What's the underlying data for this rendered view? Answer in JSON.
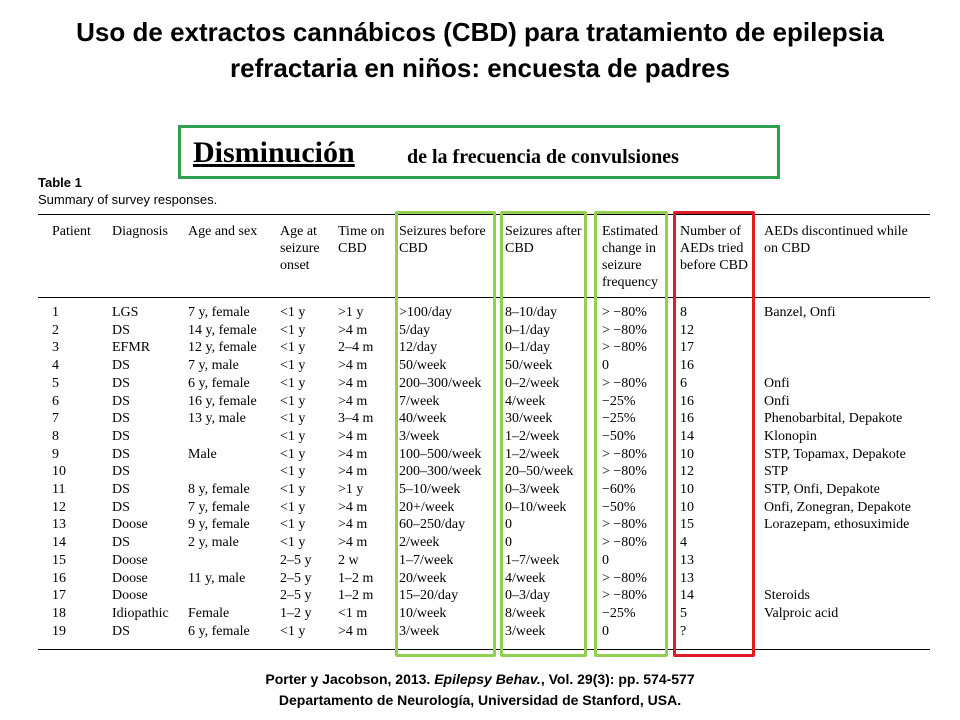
{
  "title": "Uso de extractos cannábicos (CBD) para tratamiento de epilepsia refractaria en niños: encuesta de padres",
  "subtitle": {
    "main": "Disminución",
    "rest": "de la frecuencia de convulsiones"
  },
  "table": {
    "label": "Table 1",
    "caption": "Summary of survey responses.",
    "headers": [
      "Patient",
      "Diagnosis",
      "Age and sex",
      "Age at seizure onset",
      "Time on CBD",
      "Seizures before CBD",
      "Seizures after CBD",
      "Estimated change in seizure frequency",
      "Number of AEDs tried before CBD",
      "AEDs discontinued while on CBD"
    ],
    "rows": [
      [
        "1",
        "LGS",
        "7 y, female",
        "<1 y",
        ">1 y",
        ">100/day",
        "8–10/day",
        "> −80%",
        "8",
        "Banzel, Onfi"
      ],
      [
        "2",
        "DS",
        "14 y, female",
        "<1 y",
        ">4 m",
        "5/day",
        "0–1/day",
        "> −80%",
        "12",
        ""
      ],
      [
        "3",
        "EFMR",
        "12 y, female",
        "<1 y",
        "2–4 m",
        "12/day",
        "0–1/day",
        "> −80%",
        "17",
        ""
      ],
      [
        "4",
        "DS",
        "7 y, male",
        "<1 y",
        ">4 m",
        "50/week",
        "50/week",
        "0",
        "16",
        ""
      ],
      [
        "5",
        "DS",
        "6 y, female",
        "<1 y",
        ">4 m",
        "200–300/week",
        "0–2/week",
        "> −80%",
        "6",
        "Onfi"
      ],
      [
        "6",
        "DS",
        "16 y, female",
        "<1 y",
        ">4 m",
        "7/week",
        "4/week",
        "−25%",
        "16",
        "Onfi"
      ],
      [
        "7",
        "DS",
        "13 y, male",
        "<1 y",
        "3–4 m",
        "40/week",
        "30/week",
        "−25%",
        "16",
        "Phenobarbital, Depakote"
      ],
      [
        "8",
        "DS",
        "",
        "<1 y",
        ">4 m",
        "3/week",
        "1–2/week",
        "−50%",
        "14",
        "Klonopin"
      ],
      [
        "9",
        "DS",
        "Male",
        "<1 y",
        ">4 m",
        "100–500/week",
        "1–2/week",
        "> −80%",
        "10",
        "STP, Topamax, Depakote"
      ],
      [
        "10",
        "DS",
        "",
        "<1 y",
        ">4 m",
        "200–300/week",
        "20–50/week",
        "> −80%",
        "12",
        "STP"
      ],
      [
        "11",
        "DS",
        "8 y, female",
        "<1 y",
        ">1 y",
        "5–10/week",
        "0–3/week",
        "−60%",
        "10",
        "STP, Onfi, Depakote"
      ],
      [
        "12",
        "DS",
        "7 y, female",
        "<1 y",
        ">4 m",
        "20+/week",
        "0–10/week",
        "−50%",
        "10",
        "Onfi, Zonegran, Depakote"
      ],
      [
        "13",
        "Doose",
        "9 y, female",
        "<1 y",
        ">4 m",
        "60–250/day",
        "0",
        "> −80%",
        "15",
        "Lorazepam, ethosuximide"
      ],
      [
        "14",
        "DS",
        "2 y, male",
        "<1 y",
        ">4 m",
        "2/week",
        "0",
        "> −80%",
        "4",
        ""
      ],
      [
        "15",
        "Doose",
        "",
        "2–5 y",
        "2 w",
        "1–7/week",
        "1–7/week",
        "0",
        "13",
        ""
      ],
      [
        "16",
        "Doose",
        "11 y, male",
        "2–5 y",
        "1–2 m",
        "20/week",
        "4/week",
        "> −80%",
        "13",
        ""
      ],
      [
        "17",
        "Doose",
        "",
        "2–5 y",
        "1–2 m",
        "15–20/day",
        "0–3/day",
        "> −80%",
        "14",
        "Steroids"
      ],
      [
        "18",
        "Idiopathic",
        "Female",
        "1–2 y",
        "<1 m",
        "10/week",
        "8/week",
        "−25%",
        "5",
        "Valproic acid"
      ],
      [
        "19",
        "DS",
        "6 y, female",
        "<1 y",
        ">4 m",
        "3/week",
        "3/week",
        "0",
        "?",
        ""
      ]
    ]
  },
  "highlight_colors": {
    "subtitle_border": "#2f9e4f",
    "column_green": "#92d050",
    "column_red": "#e01b24"
  },
  "footer": {
    "line1_prefix": "Porter y Jacobson, 2013. ",
    "line1_journal": "Epilepsy Behav.",
    "line1_suffix": ", Vol. 29(3): pp. 574-577",
    "line2": "Departamento de Neurología, Universidad de Stanford, USA."
  }
}
